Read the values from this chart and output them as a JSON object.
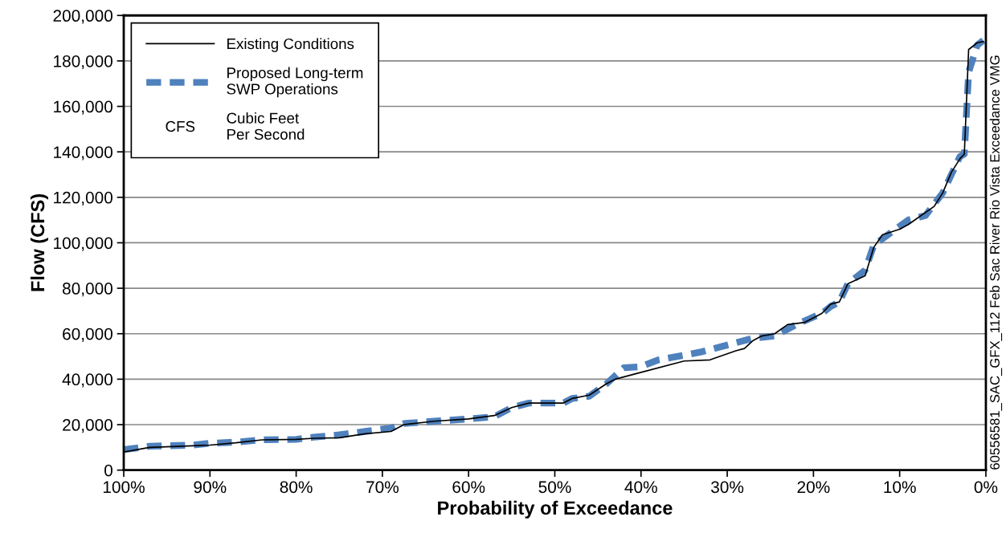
{
  "chart_data": {
    "type": "line",
    "xlabel": "Probability of Exceedance",
    "ylabel": "Flow (CFS)",
    "series": [
      {
        "name": "Existing Conditions",
        "color": "#000000",
        "line_style": "solid",
        "x": [
          100,
          97,
          92,
          90,
          87,
          84,
          80,
          78,
          75,
          72,
          69,
          67.5,
          64,
          60,
          57,
          55,
          53,
          49,
          48,
          46,
          44,
          43,
          40,
          35,
          32,
          29,
          28,
          27,
          26,
          24.5,
          23,
          21,
          19,
          18,
          17,
          16,
          14,
          13,
          12,
          10,
          9,
          6,
          5,
          4,
          3,
          2.5,
          2,
          1,
          0.3
        ],
        "values": [
          8000,
          10000,
          10700,
          11000,
          12000,
          13300,
          13500,
          14000,
          14200,
          16000,
          17000,
          20000,
          21500,
          22500,
          24000,
          27500,
          29500,
          29500,
          31500,
          33000,
          38000,
          40000,
          43000,
          48000,
          48500,
          52500,
          53500,
          57000,
          59000,
          60000,
          64000,
          65000,
          69000,
          73000,
          74000,
          82000,
          85500,
          98000,
          103500,
          106000,
          108000,
          116000,
          122000,
          131000,
          137000,
          139000,
          185000,
          188000,
          188500
        ]
      },
      {
        "name": "Proposed Long-term\nSWP Operations",
        "color": "#4f81bd",
        "line_style": "dashed",
        "x": [
          100,
          97,
          92,
          90,
          87,
          84,
          80,
          78,
          75,
          72,
          69,
          67.5,
          64,
          60,
          57,
          55,
          53,
          49,
          48,
          46,
          44,
          42,
          40,
          38,
          35,
          33,
          30,
          27,
          24.5,
          22,
          19,
          18,
          17,
          16,
          14,
          13,
          11,
          9,
          7,
          6,
          5,
          4,
          3,
          2.5,
          2,
          1,
          0.3
        ],
        "values": [
          9000,
          10500,
          11000,
          11800,
          12300,
          13300,
          13500,
          14500,
          15500,
          17000,
          18500,
          20500,
          21500,
          22500,
          23500,
          27500,
          29500,
          29500,
          31500,
          32500,
          38000,
          45000,
          45500,
          48500,
          50500,
          52000,
          55000,
          58000,
          59000,
          64000,
          69000,
          72000,
          74000,
          82000,
          88000,
          99000,
          104500,
          110000,
          112000,
          117000,
          122000,
          130000,
          138000,
          139000,
          175000,
          187000,
          189000
        ]
      }
    ],
    "xlim": [
      100,
      0
    ],
    "xticks": [
      {
        "value": 100,
        "label": "100%"
      },
      {
        "value": 90,
        "label": "90%"
      },
      {
        "value": 80,
        "label": "80%"
      },
      {
        "value": 70,
        "label": "70%"
      },
      {
        "value": 60,
        "label": "60%"
      },
      {
        "value": 50,
        "label": "50%"
      },
      {
        "value": 40,
        "label": "40%"
      },
      {
        "value": 30,
        "label": "30%"
      },
      {
        "value": 20,
        "label": "20%"
      },
      {
        "value": 10,
        "label": "10%"
      },
      {
        "value": 0,
        "label": "0%"
      }
    ],
    "ylim": [
      0,
      200000
    ],
    "yticks": [
      0,
      {
        "value": 20000,
        "label": "20,000"
      },
      {
        "value": 40000,
        "label": "40,000"
      },
      {
        "value": 60000,
        "label": "60,000"
      },
      {
        "value": 80000,
        "label": "80,000"
      },
      {
        "value": 100000,
        "label": "100,000"
      },
      {
        "value": 120000,
        "label": "120,000"
      },
      {
        "value": 140000,
        "label": "140,000"
      },
      {
        "value": 160000,
        "label": "160,000"
      },
      {
        "value": 180000,
        "label": "180,000"
      },
      {
        "value": 200000,
        "label": "200,000"
      }
    ],
    "grid": "y",
    "legend": "top left",
    "annotations": [
      "CFS",
      "Cubic Feet\nPer Second",
      "60556581_SAC_GFX_112 Feb Sac River Rio Vista Exceedance VMG"
    ]
  }
}
